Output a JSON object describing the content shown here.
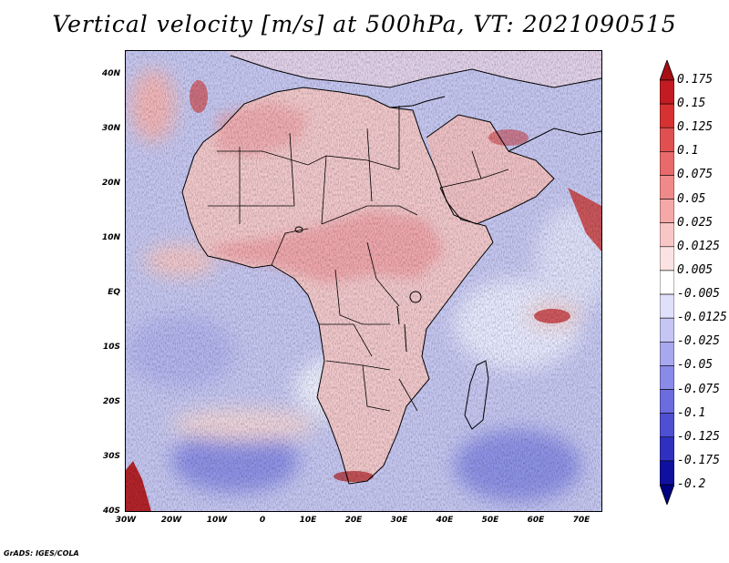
{
  "title": "Vertical velocity [m/s] at 500hPa, VT: 2021090515",
  "footer": "GrADS: IGES/COLA",
  "map": {
    "variable": "Vertical velocity",
    "units": "m/s",
    "level": "500hPa",
    "valid_time": "2021090515",
    "region": "Africa",
    "lon_range": [
      -30,
      75
    ],
    "lat_range": [
      -40,
      45
    ],
    "lat_ticks": [
      "40N",
      "30N",
      "20N",
      "10N",
      "EQ",
      "10S",
      "20S",
      "30S",
      "40S"
    ],
    "lon_ticks": [
      "30W",
      "20W",
      "10W",
      "0",
      "10E",
      "20E",
      "30E",
      "40E",
      "50E",
      "60E",
      "70E"
    ]
  },
  "colorbar": {
    "labels": [
      "0.175",
      "0.15",
      "0.125",
      "0.1",
      "0.075",
      "0.05",
      "0.025",
      "0.0125",
      "0.005",
      "-0.005",
      "-0.0125",
      "-0.025",
      "-0.05",
      "-0.075",
      "-0.1",
      "-0.125",
      "-0.175",
      "-0.2"
    ],
    "colors": [
      "#a50f15",
      "#c21b22",
      "#d73232",
      "#e05050",
      "#e86a6a",
      "#f08a8a",
      "#f5a8a8",
      "#f9c6c6",
      "#fce3e3",
      "#ffffff",
      "#e0e0fa",
      "#c6c6f5",
      "#a8a8ef",
      "#8a8ae8",
      "#6c6cdf",
      "#4f4fd4",
      "#3030c0",
      "#1010a0",
      "#000080"
    ]
  }
}
